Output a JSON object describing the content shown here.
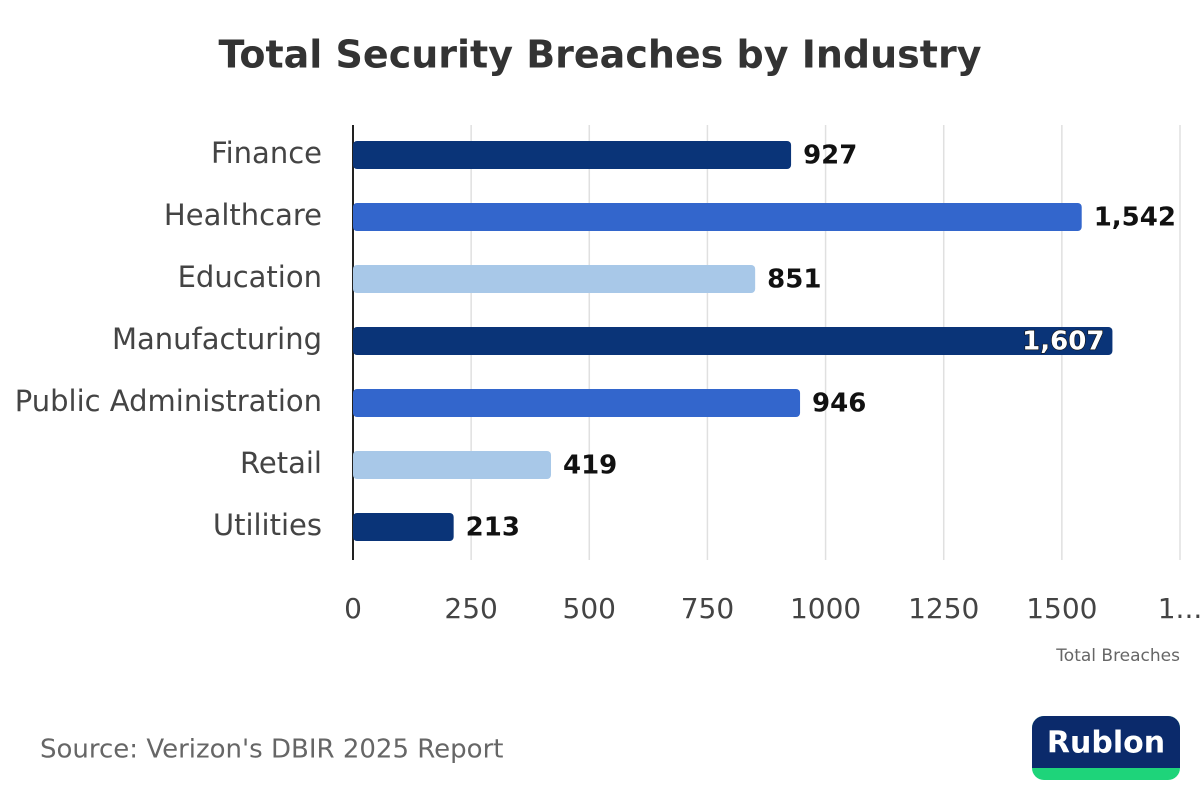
{
  "chart_data": {
    "type": "bar",
    "orientation": "horizontal",
    "title": "Total Security Breaches by Industry",
    "categories": [
      "Finance",
      "Healthcare",
      "Education",
      "Manufacturing",
      "Public Administration",
      "Retail",
      "Utilities"
    ],
    "values": [
      927,
      1542,
      851,
      1607,
      946,
      419,
      213
    ],
    "value_labels": [
      "927",
      "1,542",
      "851",
      "1,607",
      "946",
      "419",
      "213"
    ],
    "colors": [
      "#0a3478",
      "#3366cc",
      "#a8c8e8",
      "#0a3478",
      "#3366cc",
      "#a8c8e8",
      "#0a3478"
    ],
    "xlabel": "Total Breaches",
    "xlim": [
      0,
      1750
    ],
    "xticks": [
      0,
      250,
      500,
      750,
      1000,
      1250,
      1500,
      {
        "value": 1750,
        "label": "1..."
      }
    ],
    "grid": true
  },
  "source": "Source: Verizon's DBIR 2025 Report",
  "logo": "Rublon"
}
